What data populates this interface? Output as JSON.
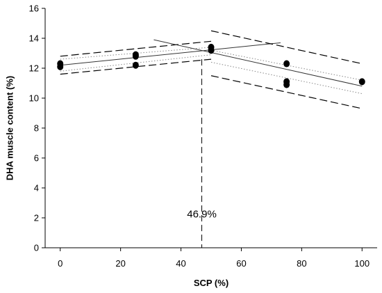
{
  "chart_data": {
    "type": "scatter",
    "xlabel": "SCP (%)",
    "ylabel": "DHA muscle content (%)",
    "xlim": [
      -5,
      105
    ],
    "ylim": [
      0,
      16
    ],
    "xticks": [
      0,
      20,
      40,
      60,
      80,
      100
    ],
    "yticks": [
      0,
      2,
      4,
      6,
      8,
      10,
      12,
      14,
      16
    ],
    "grid": false,
    "points": [
      {
        "x": 0,
        "y": 12.3
      },
      {
        "x": 0,
        "y": 12.1
      },
      {
        "x": 25,
        "y": 12.9
      },
      {
        "x": 25,
        "y": 12.8
      },
      {
        "x": 25,
        "y": 12.2
      },
      {
        "x": 50,
        "y": 13.4
      },
      {
        "x": 50,
        "y": 13.2
      },
      {
        "x": 75,
        "y": 12.3
      },
      {
        "x": 75,
        "y": 11.1
      },
      {
        "x": 75,
        "y": 10.9
      },
      {
        "x": 100,
        "y": 11.1
      }
    ],
    "regression_lines": [
      {
        "segment": "left",
        "fit": [
          [
            0,
            12.2
          ],
          [
            73,
            13.7
          ]
        ],
        "ci_upper": [
          [
            0,
            12.6
          ],
          [
            50,
            13.4
          ]
        ],
        "ci_lower": [
          [
            0,
            11.8
          ],
          [
            50,
            12.9
          ]
        ],
        "pi_upper": [
          [
            0,
            12.8
          ],
          [
            50,
            13.8
          ]
        ],
        "pi_lower": [
          [
            0,
            11.6
          ],
          [
            50,
            12.6
          ]
        ]
      },
      {
        "segment": "right",
        "fit": [
          [
            31,
            13.9
          ],
          [
            100,
            10.8
          ]
        ],
        "ci_upper": [
          [
            50,
            13.2
          ],
          [
            100,
            11.2
          ]
        ],
        "ci_lower": [
          [
            50,
            12.4
          ],
          [
            100,
            10.3
          ]
        ],
        "pi_upper": [
          [
            50,
            14.5
          ],
          [
            100,
            12.3
          ]
        ],
        "pi_lower": [
          [
            50,
            11.5
          ],
          [
            100,
            9.3
          ]
        ]
      }
    ],
    "breakpoint": {
      "x": 46.9,
      "y": 12.6,
      "label": "46.9%"
    }
  }
}
